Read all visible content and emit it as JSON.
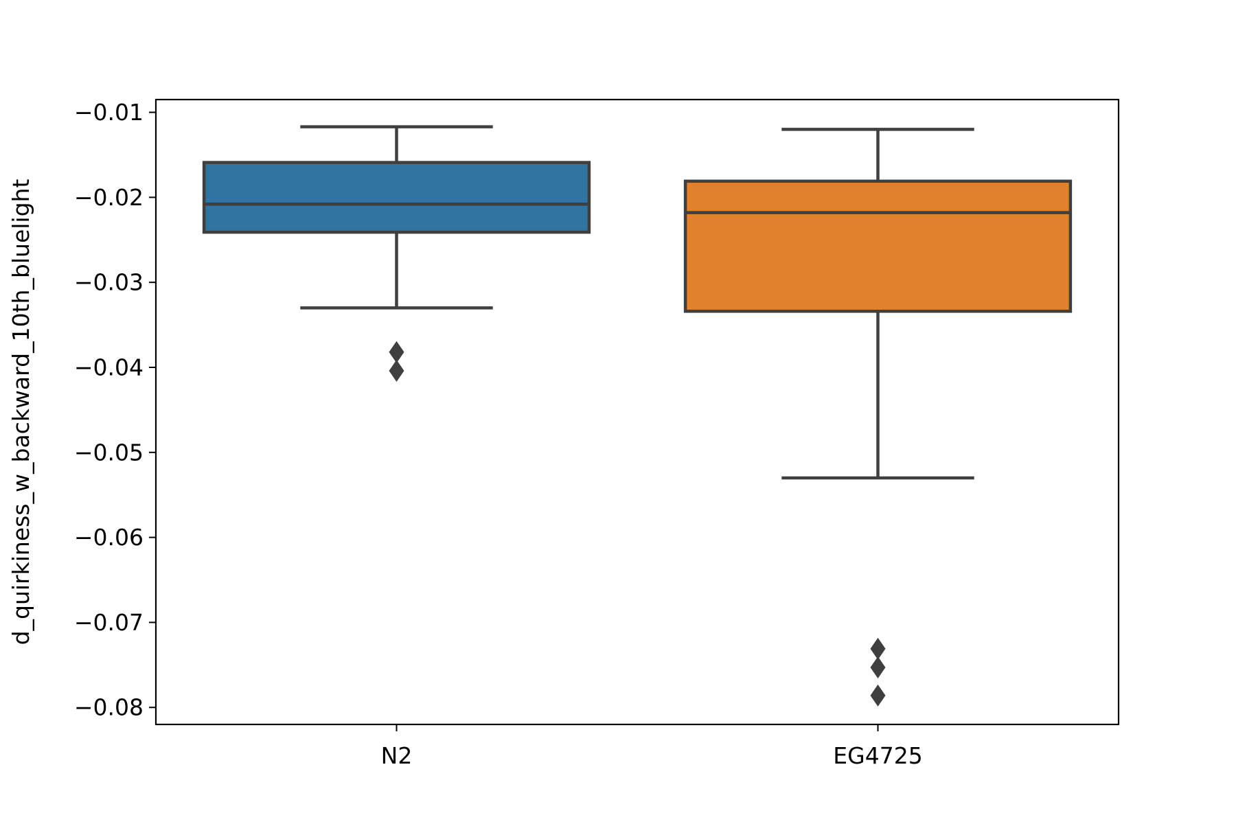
{
  "chart_data": {
    "type": "box",
    "title": "",
    "xlabel": "",
    "ylabel": "d_quirkiness_w_backward_10th_bluelight",
    "categories": [
      "N2",
      "EG4725"
    ],
    "ylim": [
      -0.082,
      -0.0085
    ],
    "yticks": [
      -0.01,
      -0.02,
      -0.03,
      -0.04,
      -0.05,
      -0.06,
      -0.07,
      -0.08
    ],
    "ytick_labels": [
      "−0.01",
      "−0.02",
      "−0.03",
      "−0.04",
      "−0.05",
      "−0.06",
      "−0.07",
      "−0.08"
    ],
    "grid": false,
    "boxes": [
      {
        "category": "N2",
        "color": "#3274a1",
        "whisker_high": -0.0117,
        "q3": -0.0159,
        "median": -0.0208,
        "q1": -0.0241,
        "whisker_low": -0.033,
        "outliers": [
          -0.0382,
          -0.0404
        ]
      },
      {
        "category": "EG4725",
        "color": "#e1812c",
        "whisker_high": -0.012,
        "q3": -0.0181,
        "median": -0.0218,
        "q1": -0.0334,
        "whisker_low": -0.053,
        "outliers": [
          -0.0731,
          -0.0753,
          -0.0786
        ]
      }
    ],
    "line_color": "#3f3f3f"
  }
}
